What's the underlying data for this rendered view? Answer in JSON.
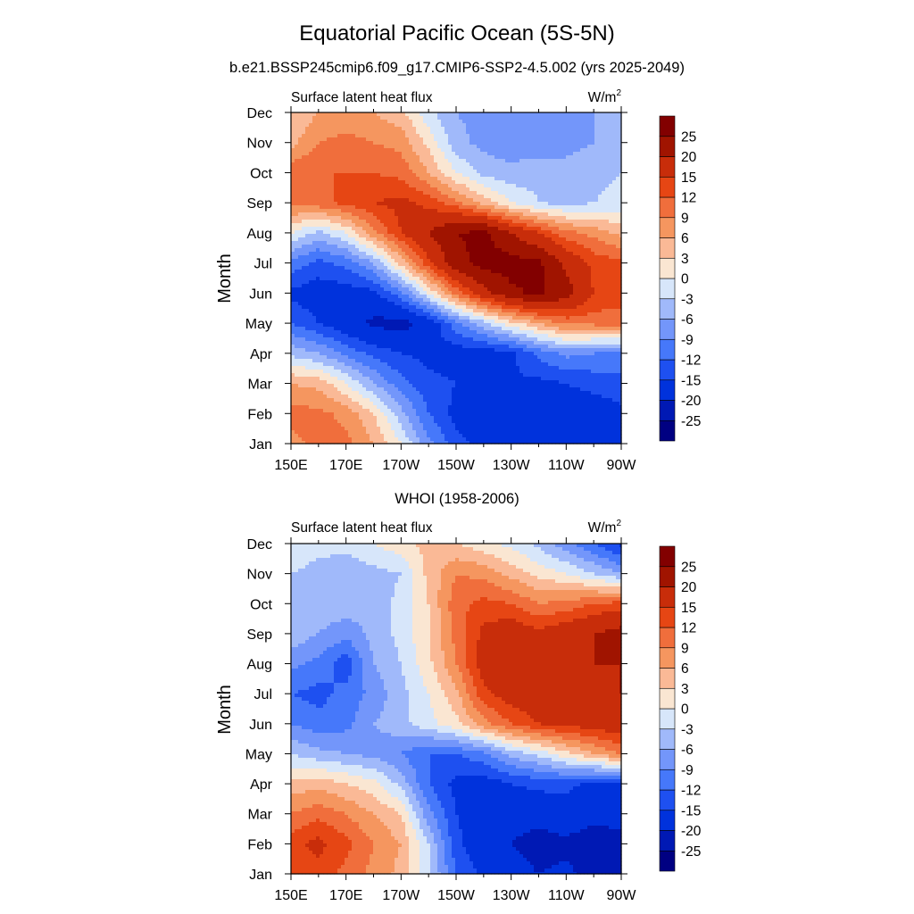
{
  "figure": {
    "title": "Equatorial Pacific Ocean (5S-5N)",
    "colors": [
      "#000082",
      "#0019b4",
      "#0032dc",
      "#1e50f0",
      "#4678fa",
      "#7396fa",
      "#a0b9fa",
      "#d7e6fa",
      "#fae6d2",
      "#fab996",
      "#f5965f",
      "#f06e3c",
      "#e64614",
      "#c82d0a",
      "#a01400",
      "#820000"
    ],
    "colorbar_labels": [
      "-25",
      "-20",
      "-15",
      "-12",
      "-9",
      "-6",
      "-3",
      "0",
      "3",
      "6",
      "9",
      "12",
      "15",
      "20",
      "25"
    ]
  },
  "chart_data": [
    {
      "type": "heatmap",
      "title": "b.e21.BSSP245cmip6.f09_g17.CMIP6-SSP2-4.5.002 (yrs 2025-2049)",
      "left_label": "Surface latent heat flux",
      "units": "W/m",
      "units_sup": "2",
      "ylabel": "Month",
      "x_ticks": [
        "150E",
        "170E",
        "170W",
        "150W",
        "130W",
        "110W",
        "90W"
      ],
      "y_ticks": [
        "Jan",
        "Feb",
        "Mar",
        "Apr",
        "May",
        "Jun",
        "Jul",
        "Aug",
        "Sep",
        "Oct",
        "Nov",
        "Dec"
      ],
      "levels": [
        -25,
        -20,
        -15,
        -12,
        -9,
        -6,
        -3,
        0,
        3,
        6,
        9,
        12,
        15,
        20,
        25
      ],
      "x": [
        150,
        160,
        170,
        180,
        190,
        200,
        210,
        220,
        230,
        240,
        250,
        260,
        270
      ],
      "y": [
        1,
        2,
        3,
        4,
        5,
        6,
        7,
        8,
        9,
        10,
        11,
        12
      ],
      "z": [
        [
          8,
          10,
          10,
          6,
          0,
          -8,
          -14,
          -16,
          -15,
          -15,
          -16,
          -17,
          -18
        ],
        [
          10,
          10,
          8,
          3,
          -5,
          -12,
          -16,
          -17,
          -17,
          -17,
          -17,
          -17,
          -16
        ],
        [
          6,
          5,
          0,
          -6,
          -11,
          -14,
          -15,
          -15,
          -15,
          -16,
          -15,
          -14,
          -13
        ],
        [
          -4,
          -6,
          -10,
          -13,
          -15,
          -16,
          -17,
          -17,
          -16,
          -11,
          -8,
          -9,
          -10
        ],
        [
          -12,
          -15,
          -18,
          -21,
          -22,
          -18,
          -10,
          -4,
          2,
          6,
          10,
          10,
          11
        ],
        [
          -16,
          -17,
          -17,
          -16,
          -10,
          0,
          10,
          18,
          24,
          26,
          22,
          15,
          13
        ],
        [
          -10,
          -13,
          -11,
          -6,
          4,
          14,
          23,
          27,
          27,
          26,
          19,
          14,
          13
        ],
        [
          0,
          -4,
          0,
          8,
          15,
          20,
          25,
          26,
          20,
          15,
          10,
          8,
          5
        ],
        [
          10,
          11,
          13,
          15,
          16,
          14,
          10,
          5,
          0,
          -3,
          -4,
          -3,
          -2
        ],
        [
          11,
          12,
          12,
          12,
          11,
          6,
          0,
          -4,
          -5,
          -4,
          -5,
          -4,
          -3
        ],
        [
          5,
          9,
          10,
          9,
          8,
          2,
          -5,
          -7,
          -8,
          -8,
          -7,
          -6,
          -6
        ],
        [
          3,
          6,
          7,
          6,
          4,
          -2,
          -6,
          -7,
          -8,
          -8,
          -7,
          -6,
          -6
        ]
      ]
    },
    {
      "type": "heatmap",
      "title": "WHOI (1958-2006)",
      "left_label": "Surface latent heat flux",
      "units": "W/m",
      "units_sup": "2",
      "ylabel": "Month",
      "x_ticks": [
        "150E",
        "170E",
        "170W",
        "150W",
        "130W",
        "110W",
        "90W"
      ],
      "y_ticks": [
        "Jan",
        "Feb",
        "Mar",
        "Apr",
        "May",
        "Jun",
        "Jul",
        "Aug",
        "Sep",
        "Oct",
        "Nov",
        "Dec"
      ],
      "levels": [
        -25,
        -20,
        -15,
        -12,
        -9,
        -6,
        -3,
        0,
        3,
        6,
        9,
        12,
        15,
        20,
        25
      ],
      "x": [
        150,
        160,
        170,
        180,
        190,
        200,
        210,
        220,
        230,
        240,
        250,
        260,
        270
      ],
      "y": [
        1,
        2,
        3,
        4,
        5,
        6,
        7,
        8,
        9,
        10,
        11,
        12
      ],
      "z": [
        [
          12,
          14,
          11,
          8,
          5,
          -2,
          -12,
          -16,
          -18,
          -20,
          -19,
          -22,
          -25
        ],
        [
          14,
          16,
          13,
          9,
          6,
          -3,
          -14,
          -18,
          -20,
          -22,
          -21,
          -23,
          -22
        ],
        [
          9,
          11,
          9,
          6,
          3,
          -8,
          -15,
          -17,
          -18,
          -18,
          -17,
          -18,
          -18
        ],
        [
          4,
          5,
          3,
          1,
          -4,
          -12,
          -16,
          -17,
          -15,
          -14,
          -14,
          -16,
          -15
        ],
        [
          -3,
          -5,
          -6,
          -7,
          -9,
          -12,
          -12,
          -10,
          -5,
          -2,
          2,
          6,
          9
        ],
        [
          -9,
          -11,
          -10,
          -6,
          -4,
          -1,
          2,
          8,
          12,
          15,
          16,
          17,
          18
        ],
        [
          -12,
          -13,
          -11,
          -8,
          -4,
          0,
          5,
          14,
          17,
          18,
          18,
          19,
          20
        ],
        [
          -8,
          -10,
          -14,
          -6,
          -3,
          2,
          9,
          17,
          19,
          17,
          19,
          20,
          20
        ],
        [
          -4,
          -6,
          -8,
          -5,
          -2,
          3,
          10,
          16,
          18,
          16,
          18,
          20,
          22
        ],
        [
          -3,
          -4,
          -4,
          -5,
          -2,
          3,
          11,
          13,
          12,
          9,
          10,
          12,
          13
        ],
        [
          -3,
          -4,
          -5,
          -4,
          -3,
          4,
          9,
          8,
          5,
          2,
          0,
          -3,
          -6
        ],
        [
          -1,
          -2,
          -2,
          0,
          2,
          4,
          3,
          1,
          -1,
          -4,
          -8,
          -12,
          -16
        ]
      ]
    }
  ]
}
